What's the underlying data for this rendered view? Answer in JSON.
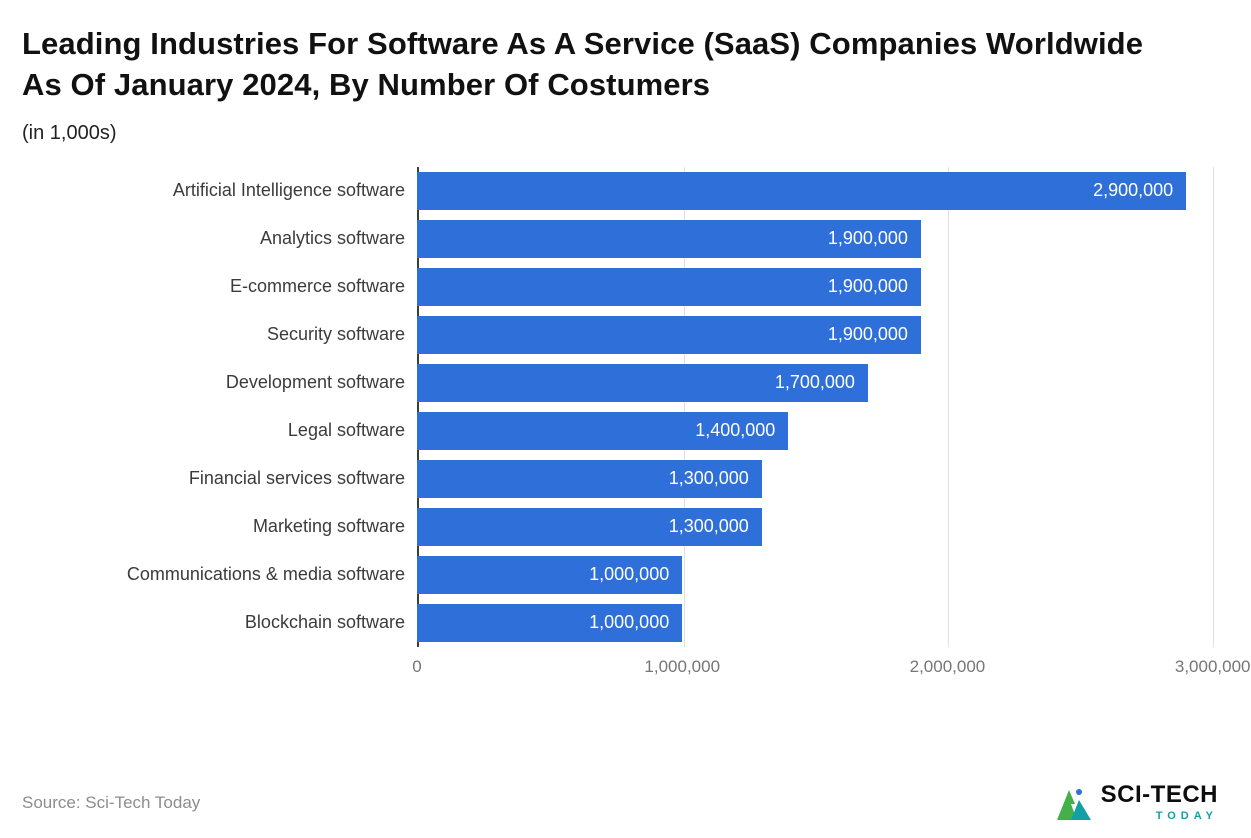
{
  "title": "Leading Industries For Software As A Service (SaaS) Companies Worldwide As Of January 2024, By Number Of Costumers",
  "subtitle": "(in 1,000s)",
  "source": "Source: Sci-Tech Today",
  "logo": {
    "line1": "SCI-TECH",
    "line2": "TODAY"
  },
  "colors": {
    "bar": "#2e6fd9",
    "gridline": "#e0e0e0",
    "axis_line": "#3c3c3c",
    "value_label": "#ffffff",
    "logo_green": "#43b049",
    "logo_teal": "#11a0a5"
  },
  "chart_data": {
    "type": "bar",
    "orientation": "horizontal",
    "title": "Leading Industries For Software As A Service (SaaS) Companies Worldwide As Of January 2024, By Number Of Costumers",
    "subtitle": "(in 1,000s)",
    "xlabel": "",
    "ylabel": "",
    "axis_max": 3020000,
    "grid": true,
    "legend": false,
    "categories": [
      "Artificial Intelligence software",
      "Analytics software",
      "E-commerce software",
      "Security software",
      "Development software",
      "Legal software",
      "Financial services software",
      "Marketing software",
      "Communications & media software",
      "Blockchain software"
    ],
    "values": [
      2900000,
      1900000,
      1900000,
      1900000,
      1700000,
      1400000,
      1300000,
      1300000,
      1000000,
      1000000
    ],
    "value_labels": [
      "2,900,000",
      "1,900,000",
      "1,900,000",
      "1,900,000",
      "1,700,000",
      "1,400,000",
      "1,300,000",
      "1,300,000",
      "1,000,000",
      "1,000,000"
    ],
    "ticks": [
      {
        "value": 0,
        "label": "0"
      },
      {
        "value": 1000000,
        "label": "1,000,000"
      },
      {
        "value": 2000000,
        "label": "2,000,000"
      },
      {
        "value": 3000000,
        "label": "3,000,000"
      }
    ]
  }
}
